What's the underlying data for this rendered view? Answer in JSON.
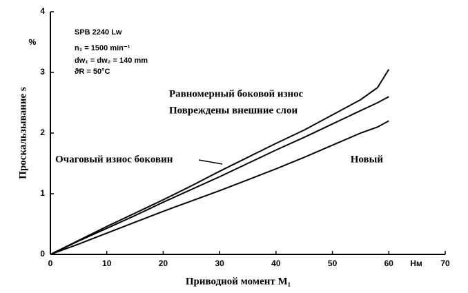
{
  "chart_data": {
    "type": "line",
    "y_label": "Проскальзывание s",
    "y_unit": "%",
    "x_label": "Приводной момент M₁",
    "x_unit": "Нм",
    "annotations": [
      "SPB 2240 Lw",
      "n₁ = 1500 min⁻¹",
      "dw₁ = dw₂ = 140 mm",
      "ϑR = 50°C",
      "Очаговый износ боковин"
    ],
    "x": [
      0,
      5,
      10,
      15,
      20,
      25,
      30,
      35,
      40,
      45,
      50,
      55,
      58,
      60
    ],
    "series": [
      {
        "name": "Равномерный боковой износ",
        "color": "#000000",
        "values": [
          0,
          0.23,
          0.46,
          0.68,
          0.9,
          1.13,
          1.37,
          1.6,
          1.83,
          2.05,
          2.3,
          2.55,
          2.75,
          3.05
        ]
      },
      {
        "name": "Повреждены внешние слои",
        "color": "#000000",
        "values": [
          0,
          0.22,
          0.43,
          0.64,
          0.86,
          1.07,
          1.28,
          1.5,
          1.72,
          1.93,
          2.15,
          2.37,
          2.5,
          2.6
        ]
      },
      {
        "name": "Новый",
        "color": "#000000",
        "values": [
          0,
          0.17,
          0.35,
          0.53,
          0.71,
          0.88,
          1.05,
          1.23,
          1.41,
          1.6,
          1.8,
          2.0,
          2.1,
          2.2
        ]
      }
    ],
    "xlim": [
      0,
      70
    ],
    "xticks": [
      0,
      10,
      20,
      30,
      40,
      50,
      60,
      70
    ],
    "ylim": [
      0,
      4
    ],
    "yticks": [
      0,
      1,
      2,
      3,
      4
    ]
  }
}
